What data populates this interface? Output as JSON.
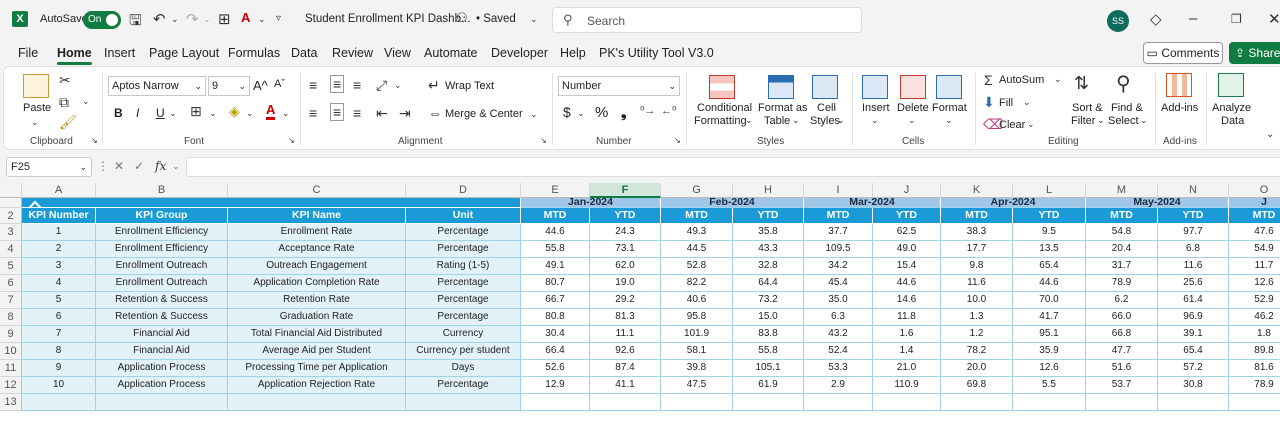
{
  "titlebar": {
    "app_icon": "X",
    "autosave_label": "AutoSave",
    "toggle_label": "On",
    "doc_title": "Student Enrollment KPI Dashb...",
    "saved_label": "• Saved",
    "search_placeholder": "Search",
    "user_initials": "SS"
  },
  "menu": {
    "items": [
      "File",
      "Home",
      "Insert",
      "Page Layout",
      "Formulas",
      "Data",
      "Review",
      "View",
      "Automate",
      "Developer",
      "Help",
      "PK's Utility Tool V3.0"
    ],
    "active": "Home",
    "comments_label": "Comments",
    "share_label": "Share"
  },
  "ribbon": {
    "clipboard": {
      "paste_label": "Paste",
      "group_label": "Clipboard"
    },
    "font": {
      "font_name": "Aptos Narrow",
      "font_size": "9",
      "group_label": "Font",
      "bold": "B",
      "italic": "I",
      "underline": "U",
      "grow": "A^",
      "shrink": "Aˇ"
    },
    "alignment": {
      "wrap_text": "Wrap Text",
      "merge_center": "Merge & Center",
      "group_label": "Alignment"
    },
    "number": {
      "format": "Number",
      "currency_symbol": "$",
      "percent": "%",
      "comma": "❟",
      "group_label": "Number"
    },
    "styles": {
      "conditional_formatting": [
        "Conditional",
        "Formatting"
      ],
      "format_as_table": [
        "Format as",
        "Table"
      ],
      "cell_styles": [
        "Cell",
        "Styles"
      ],
      "group_label": "Styles"
    },
    "cells": {
      "insert": "Insert",
      "delete": "Delete",
      "format": "Format",
      "group_label": "Cells"
    },
    "editing": {
      "autosum": "AutoSum",
      "fill": "Fill",
      "clear": "Clear",
      "sort_filter": [
        "Sort &",
        "Filter"
      ],
      "find_select": [
        "Find &",
        "Select"
      ],
      "group_label": "Editing"
    },
    "addins": {
      "addins": "Add-ins",
      "group_label": "Add-ins"
    },
    "analyze": {
      "label": [
        "Analyze",
        "Data"
      ]
    }
  },
  "formula_bar": {
    "name_box": "F25",
    "fx": "fx",
    "formula": ""
  },
  "sheet": {
    "columns": [
      "A",
      "B",
      "C",
      "D",
      "E",
      "F",
      "G",
      "H",
      "I",
      "J",
      "K",
      "L",
      "M",
      "N",
      "O"
    ],
    "selected_column": "F",
    "row_numbers": [
      "1",
      "2",
      "3",
      "4",
      "5",
      "6",
      "7",
      "8",
      "9",
      "10",
      "11",
      "12",
      "13"
    ],
    "months": [
      "Jan-2024",
      "Feb-2024",
      "Mar-2024",
      "Apr-2024",
      "May-2024",
      "J"
    ],
    "headers": [
      "KPI Number",
      "KPI Group",
      "KPI Name",
      "Unit",
      "MTD",
      "YTD",
      "MTD",
      "YTD",
      "MTD",
      "YTD",
      "MTD",
      "YTD",
      "MTD",
      "YTD",
      "MTD"
    ],
    "rows": [
      [
        "1",
        "Enrollment Efficiency",
        "Enrollment Rate",
        "Percentage",
        "44.6",
        "24.3",
        "49.3",
        "35.8",
        "37.7",
        "62.5",
        "38.3",
        "9.5",
        "54.8",
        "97.7",
        "47.6"
      ],
      [
        "2",
        "Enrollment Efficiency",
        "Acceptance Rate",
        "Percentage",
        "55.8",
        "73.1",
        "44.5",
        "43.3",
        "109.5",
        "49.0",
        "17.7",
        "13.5",
        "20.4",
        "6.8",
        "54.9"
      ],
      [
        "3",
        "Enrollment Outreach",
        "Outreach Engagement",
        "Rating (1-5)",
        "49.1",
        "62.0",
        "52.8",
        "32.8",
        "34.2",
        "15.4",
        "9.8",
        "65.4",
        "31.7",
        "11.6",
        "11.7"
      ],
      [
        "4",
        "Enrollment Outreach",
        "Application Completion Rate",
        "Percentage",
        "80.7",
        "19.0",
        "82.2",
        "64.4",
        "45.4",
        "44.6",
        "11.6",
        "44.6",
        "78.9",
        "25.6",
        "12.6"
      ],
      [
        "5",
        "Retention & Success",
        "Retention Rate",
        "Percentage",
        "66.7",
        "29.2",
        "40.6",
        "73.2",
        "35.0",
        "14.6",
        "10.0",
        "70.0",
        "6.2",
        "61.4",
        "52.9"
      ],
      [
        "6",
        "Retention & Success",
        "Graduation Rate",
        "Percentage",
        "80.8",
        "81.3",
        "95.8",
        "15.0",
        "6.3",
        "11.8",
        "1.3",
        "41.7",
        "66.0",
        "96.9",
        "46.2"
      ],
      [
        "7",
        "Financial Aid",
        "Total Financial Aid Distributed",
        "Currency",
        "30.4",
        "11.1",
        "101.9",
        "83.8",
        "43.2",
        "1.6",
        "1.2",
        "95.1",
        "66.8",
        "39.1",
        "1.8"
      ],
      [
        "8",
        "Financial Aid",
        "Average Aid per Student",
        "Currency per student",
        "66.4",
        "92.6",
        "58.1",
        "55.8",
        "52.4",
        "1.4",
        "78.2",
        "35.9",
        "47.7",
        "65.4",
        "89.8"
      ],
      [
        "9",
        "Application Process",
        "Processing Time per Application",
        "Days",
        "52.6",
        "87.4",
        "39.8",
        "105.1",
        "53.3",
        "21.0",
        "20.0",
        "12.6",
        "51.6",
        "57.2",
        "81.6"
      ],
      [
        "10",
        "Application Process",
        "Application Rejection Rate",
        "Percentage",
        "12.9",
        "41.1",
        "47.5",
        "61.9",
        "2.9",
        "110.9",
        "69.8",
        "5.5",
        "53.7",
        "30.8",
        "78.9"
      ]
    ]
  }
}
